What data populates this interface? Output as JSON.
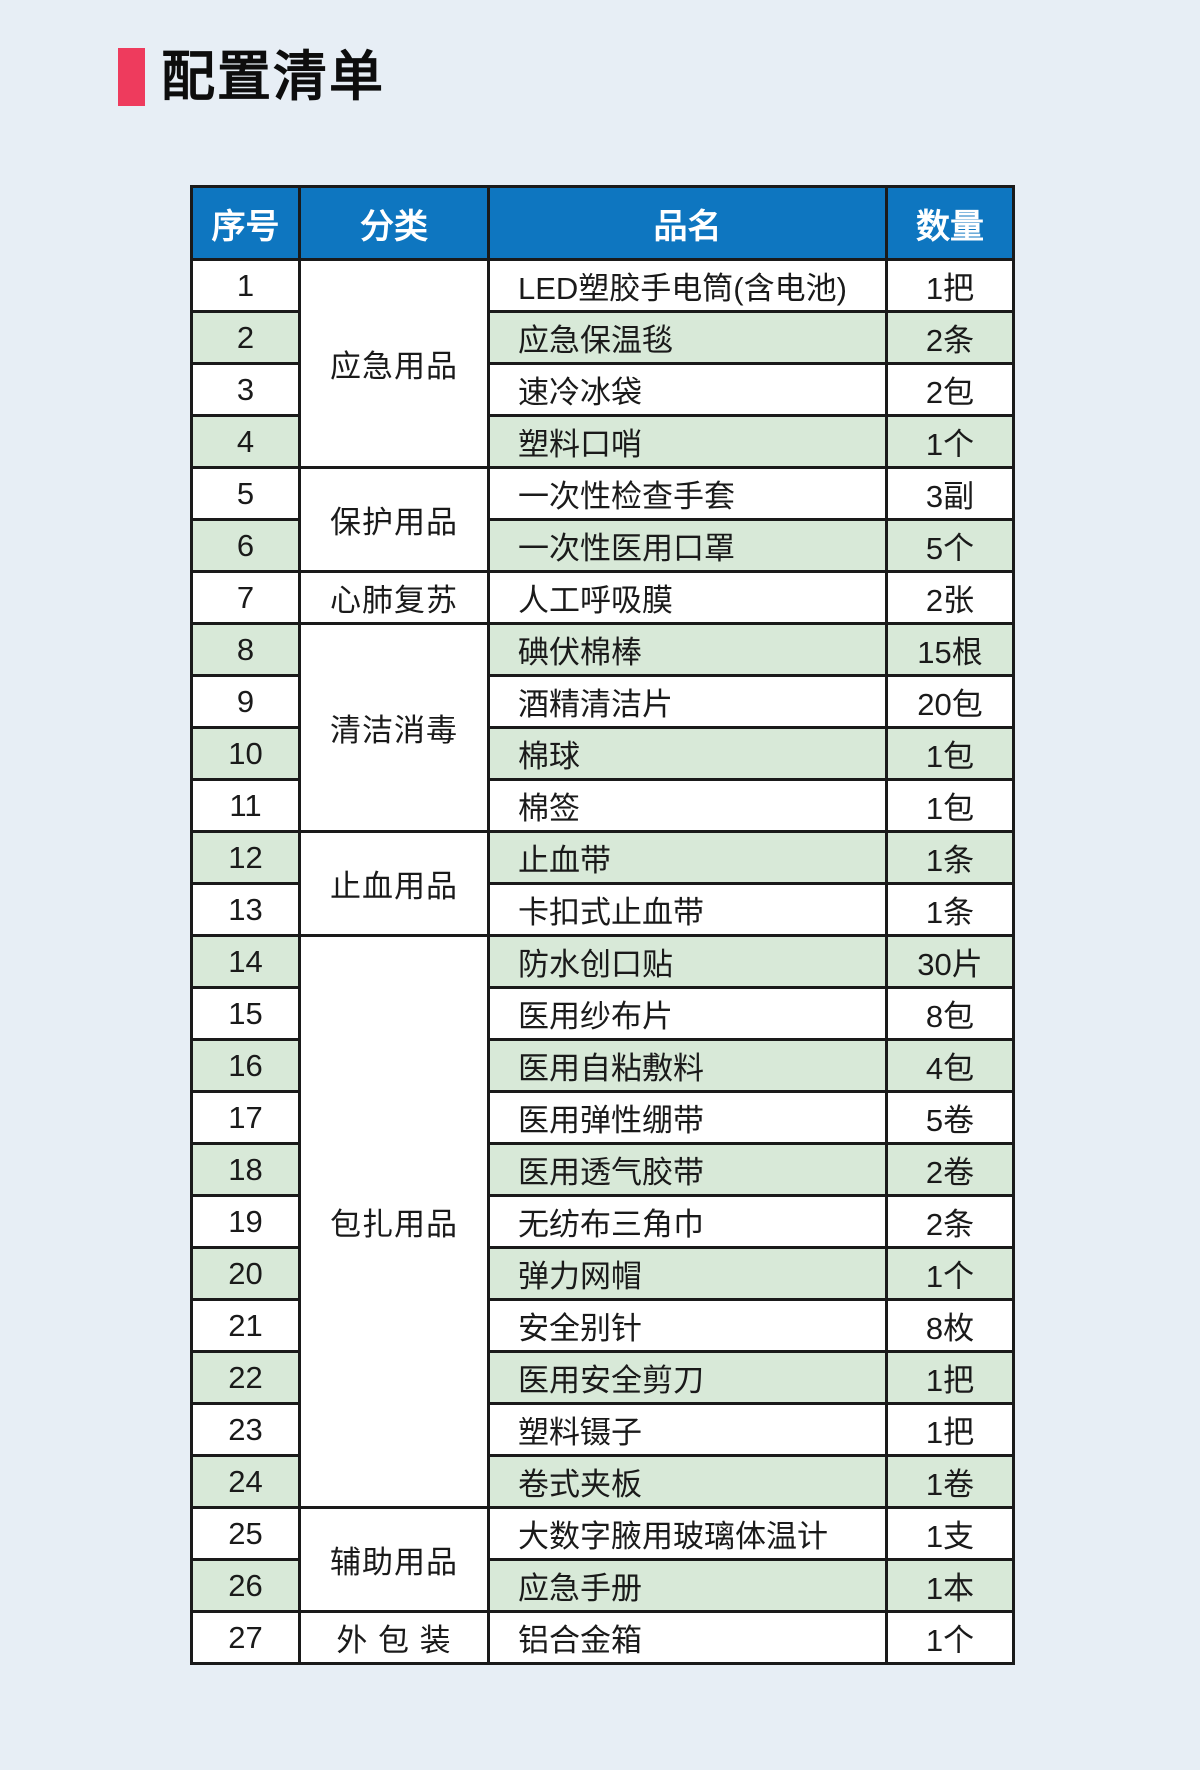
{
  "page": {
    "background": "#e7eef5"
  },
  "title": {
    "text": "配置清单",
    "accent_color": "#ee3b5d"
  },
  "table": {
    "colors": {
      "header_bg": "#0e76c0",
      "header_text": "#ffffff",
      "row_green": "#d8e9d8",
      "row_white": "#ffffff",
      "border": "#1a1a1a"
    },
    "header": {
      "no": "序号",
      "category": "分类",
      "name": "品名",
      "qty": "数量"
    },
    "categories": [
      {
        "label": "应急用品",
        "start": 1,
        "span": 4
      },
      {
        "label": "保护用品",
        "start": 5,
        "span": 2
      },
      {
        "label": "心肺复苏",
        "start": 7,
        "span": 1
      },
      {
        "label": "清洁消毒",
        "start": 8,
        "span": 4
      },
      {
        "label": "止血用品",
        "start": 12,
        "span": 2
      },
      {
        "label": "包扎用品",
        "start": 14,
        "span": 11
      },
      {
        "label": "辅助用品",
        "start": 25,
        "span": 2
      },
      {
        "label": "外 包 装",
        "start": 27,
        "span": 1
      }
    ],
    "rows": [
      {
        "no": "1",
        "name": "LED塑胶手电筒(含电池)",
        "qty": "1把"
      },
      {
        "no": "2",
        "name": "应急保温毯",
        "qty": "2条"
      },
      {
        "no": "3",
        "name": "速冷冰袋",
        "qty": "2包"
      },
      {
        "no": "4",
        "name": "塑料口哨",
        "qty": "1个"
      },
      {
        "no": "5",
        "name": "一次性检查手套",
        "qty": "3副"
      },
      {
        "no": "6",
        "name": "一次性医用口罩",
        "qty": "5个"
      },
      {
        "no": "7",
        "name": "人工呼吸膜",
        "qty": "2张"
      },
      {
        "no": "8",
        "name": "碘伏棉棒",
        "qty": "15根"
      },
      {
        "no": "9",
        "name": "酒精清洁片",
        "qty": "20包"
      },
      {
        "no": "10",
        "name": "棉球",
        "qty": "1包"
      },
      {
        "no": "11",
        "name": "棉签",
        "qty": "1包"
      },
      {
        "no": "12",
        "name": "止血带",
        "qty": "1条"
      },
      {
        "no": "13",
        "name": "卡扣式止血带",
        "qty": "1条"
      },
      {
        "no": "14",
        "name": "防水创口贴",
        "qty": "30片"
      },
      {
        "no": "15",
        "name": "医用纱布片",
        "qty": "8包"
      },
      {
        "no": "16",
        "name": "医用自粘敷料",
        "qty": "4包"
      },
      {
        "no": "17",
        "name": "医用弹性绷带",
        "qty": "5卷"
      },
      {
        "no": "18",
        "name": "医用透气胶带",
        "qty": "2卷"
      },
      {
        "no": "19",
        "name": "无纺布三角巾",
        "qty": "2条"
      },
      {
        "no": "20",
        "name": "弹力网帽",
        "qty": "1个"
      },
      {
        "no": "21",
        "name": "安全别针",
        "qty": "8枚"
      },
      {
        "no": "22",
        "name": "医用安全剪刀",
        "qty": "1把"
      },
      {
        "no": "23",
        "name": "塑料镊子",
        "qty": "1把"
      },
      {
        "no": "24",
        "name": "卷式夹板",
        "qty": "1卷"
      },
      {
        "no": "25",
        "name": "大数字腋用玻璃体温计",
        "qty": "1支"
      },
      {
        "no": "26",
        "name": "应急手册",
        "qty": "1本"
      },
      {
        "no": "27",
        "name": "铝合金箱",
        "qty": "1个"
      }
    ]
  }
}
